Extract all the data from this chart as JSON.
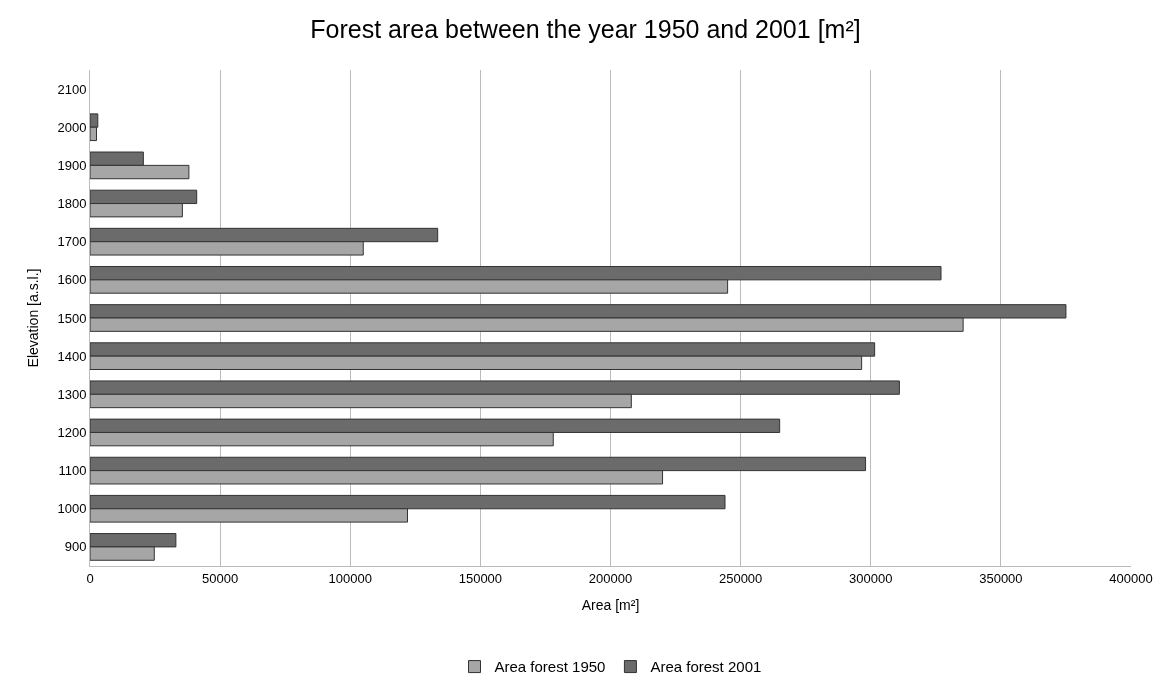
{
  "chart_data": {
    "type": "bar",
    "orientation": "horizontal",
    "title": "Forest area between the year 1950 and 2001 [m²]",
    "xlabel": "Area [m²]",
    "ylabel": "Elevation [a.s.l.]",
    "categories": [
      "2100",
      "2000",
      "1900",
      "1800",
      "1700",
      "1600",
      "1500",
      "1400",
      "1300",
      "1200",
      "1100",
      "1000",
      "900"
    ],
    "series": [
      {
        "name": "Area forest 1950",
        "color": "#a6a6a6",
        "values": [
          null,
          2500,
          38000,
          35500,
          105000,
          245000,
          335500,
          296500,
          208000,
          178000,
          220000,
          122000,
          24700
        ]
      },
      {
        "name": "Area forest 2001",
        "color": "#6b6b6b",
        "values": [
          null,
          3000,
          20500,
          41000,
          133600,
          327000,
          375000,
          301500,
          311000,
          265000,
          298000,
          244000,
          33000
        ]
      }
    ],
    "xlim": [
      0,
      400000
    ],
    "xticks": [
      0,
      50000,
      100000,
      150000,
      200000,
      250000,
      300000,
      350000,
      400000
    ],
    "grid": "x",
    "legend": "bottom"
  }
}
